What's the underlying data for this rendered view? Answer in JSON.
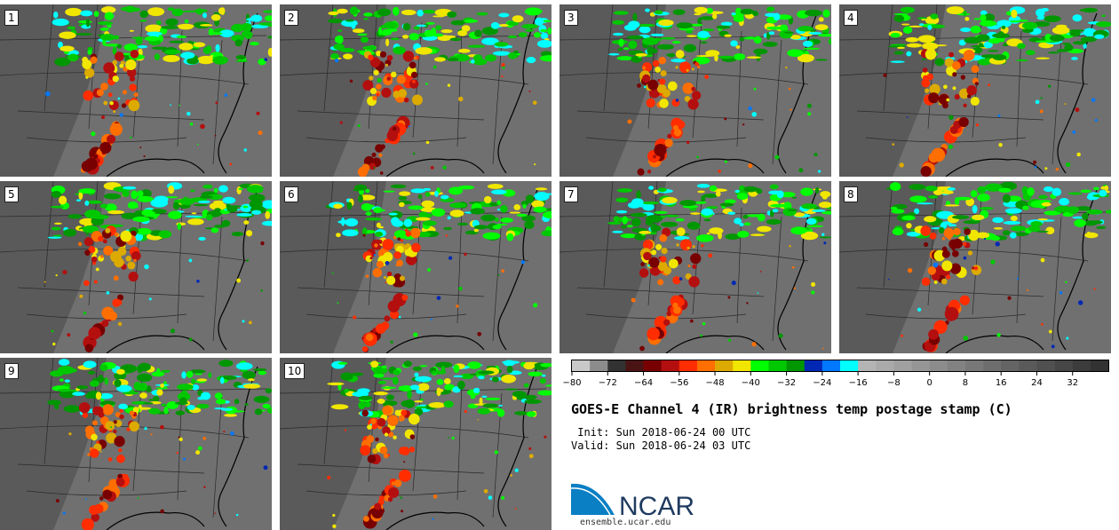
{
  "panels": [
    {
      "label": "1"
    },
    {
      "label": "2"
    },
    {
      "label": "3"
    },
    {
      "label": "4"
    },
    {
      "label": "5"
    },
    {
      "label": "6"
    },
    {
      "label": "7"
    },
    {
      "label": "8"
    },
    {
      "label": "9"
    },
    {
      "label": "10"
    }
  ],
  "colorbar": {
    "colors": [
      "#c8c8c8",
      "#8c8c8c",
      "#323232",
      "#4b1414",
      "#780000",
      "#b40f0f",
      "#ff2d00",
      "#ff6e00",
      "#dcaa00",
      "#f0e600",
      "#00ff00",
      "#00c800",
      "#009600",
      "#0028b4",
      "#0078ff",
      "#00ffff",
      "#b4b4b4",
      "#aaaaaa",
      "#a0a0a0",
      "#969696",
      "#8c8c8c",
      "#828282",
      "#787878",
      "#6e6e6e",
      "#646464",
      "#5a5a5a",
      "#505050",
      "#464646",
      "#3c3c3c",
      "#323232"
    ],
    "ticks": [
      "−80",
      "−72",
      "−64",
      "−56",
      "−48",
      "−40",
      "−32",
      "−24",
      "−16",
      "−8",
      "0",
      "8",
      "16",
      "24",
      "32"
    ]
  },
  "title": "GOES-E Channel 4 (IR) brightness temp postage stamp (C)",
  "init_text": " Init: Sun 2018-06-24 00 UTC",
  "valid_text": "Valid: Sun 2018-06-24 03 UTC",
  "logo_text": "NCAR",
  "url": "ensemble.ucar.edu"
}
